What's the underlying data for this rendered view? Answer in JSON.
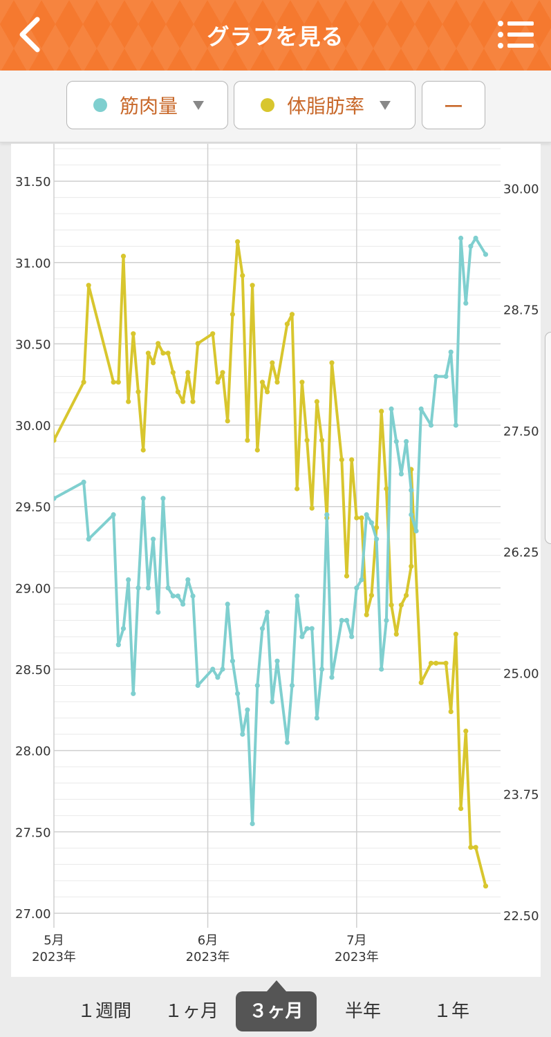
{
  "header": {
    "title": "グラフを見る"
  },
  "selectors": [
    {
      "label": "筋肉量",
      "color": "#7fcfcf"
    },
    {
      "label": "体脂肪率",
      "color": "#d8c62e"
    },
    {
      "label": "ー"
    }
  ],
  "tabs": [
    {
      "label": "１週間",
      "active": false
    },
    {
      "label": "１ヶ月",
      "active": false
    },
    {
      "label": "３ヶ月",
      "active": true
    },
    {
      "label": "半年",
      "active": false
    },
    {
      "label": "１年",
      "active": false
    }
  ],
  "chart_data": {
    "type": "line",
    "left_axis": {
      "ticks": [
        "27.00",
        "27.50",
        "28.00",
        "28.50",
        "29.00",
        "29.50",
        "30.00",
        "30.50",
        "31.00",
        "31.50"
      ],
      "ylim": [
        26.97,
        31.73
      ]
    },
    "right_axis": {
      "ticks": [
        "22.50",
        "23.75",
        "25.00",
        "26.25",
        "27.50",
        "28.75",
        "30.00"
      ],
      "ylim": [
        22.47,
        30.46
      ]
    },
    "x_axis": {
      "xlim": [
        "2023-05-01",
        "2023-07-30"
      ],
      "ticks": [
        {
          "date": "2023-05-01",
          "month": "5月",
          "year": "2023年"
        },
        {
          "date": "2023-06-01",
          "month": "6月",
          "year": "2023年"
        },
        {
          "date": "2023-07-01",
          "month": "7月",
          "year": "2023年"
        }
      ]
    },
    "series": [
      {
        "name": "筋肉量",
        "axis": "left",
        "color": "#7fcfcf",
        "points": [
          [
            "2023-04-30",
            29.5
          ],
          [
            "2023-05-01",
            29.55
          ],
          [
            "2023-05-07",
            29.65
          ],
          [
            "2023-05-08",
            29.3
          ],
          [
            "2023-05-13",
            29.45
          ],
          [
            "2023-05-14",
            28.65
          ],
          [
            "2023-05-15",
            28.75
          ],
          [
            "2023-05-16",
            29.05
          ],
          [
            "2023-05-17",
            28.35
          ],
          [
            "2023-05-18",
            29.0
          ],
          [
            "2023-05-19",
            29.55
          ],
          [
            "2023-05-20",
            29.0
          ],
          [
            "2023-05-21",
            29.3
          ],
          [
            "2023-05-22",
            28.85
          ],
          [
            "2023-05-23",
            29.55
          ],
          [
            "2023-05-24",
            29.0
          ],
          [
            "2023-05-25",
            28.95
          ],
          [
            "2023-05-26",
            28.95
          ],
          [
            "2023-05-27",
            28.9
          ],
          [
            "2023-05-28",
            29.05
          ],
          [
            "2023-05-29",
            28.95
          ],
          [
            "2023-05-30",
            28.4
          ],
          [
            "2023-06-02",
            28.5
          ],
          [
            "2023-06-03",
            28.45
          ],
          [
            "2023-06-04",
            28.5
          ],
          [
            "2023-06-05",
            28.9
          ],
          [
            "2023-06-06",
            28.55
          ],
          [
            "2023-06-07",
            28.35
          ],
          [
            "2023-06-08",
            28.1
          ],
          [
            "2023-06-09",
            28.25
          ],
          [
            "2023-06-10",
            27.55
          ],
          [
            "2023-06-11",
            28.4
          ],
          [
            "2023-06-12",
            28.75
          ],
          [
            "2023-06-13",
            28.85
          ],
          [
            "2023-06-14",
            28.3
          ],
          [
            "2023-06-15",
            28.55
          ],
          [
            "2023-06-17",
            28.05
          ],
          [
            "2023-06-18",
            28.4
          ],
          [
            "2023-06-19",
            28.95
          ],
          [
            "2023-06-20",
            28.7
          ],
          [
            "2023-06-21",
            28.75
          ],
          [
            "2023-06-22",
            28.75
          ],
          [
            "2023-06-23",
            28.2
          ],
          [
            "2023-06-24",
            28.5
          ],
          [
            "2023-06-25",
            29.45
          ],
          [
            "2023-06-26",
            28.45
          ],
          [
            "2023-06-28",
            28.8
          ],
          [
            "2023-06-29",
            28.8
          ],
          [
            "2023-06-30",
            28.7
          ],
          [
            "2023-07-01",
            29.0
          ],
          [
            "2023-07-02",
            29.05
          ],
          [
            "2023-07-03",
            29.45
          ],
          [
            "2023-07-04",
            29.4
          ],
          [
            "2023-07-05",
            29.3
          ],
          [
            "2023-07-06",
            28.5
          ],
          [
            "2023-07-07",
            28.8
          ],
          [
            "2023-07-08",
            30.1
          ],
          [
            "2023-07-09",
            29.9
          ],
          [
            "2023-07-10",
            29.7
          ],
          [
            "2023-07-11",
            29.9
          ],
          [
            "2023-07-12",
            29.6
          ],
          [
            "2023-07-12",
            29.45
          ],
          [
            "2023-07-13",
            29.35
          ],
          [
            "2023-07-14",
            30.1
          ],
          [
            "2023-07-16",
            30.0
          ],
          [
            "2023-07-17",
            30.3
          ],
          [
            "2023-07-19",
            30.3
          ],
          [
            "2023-07-20",
            30.45
          ],
          [
            "2023-07-21",
            30.0
          ],
          [
            "2023-07-22",
            31.15
          ],
          [
            "2023-07-23",
            30.75
          ],
          [
            "2023-07-24",
            31.1
          ],
          [
            "2023-07-25",
            31.15
          ],
          [
            "2023-07-27",
            31.05
          ]
        ]
      },
      {
        "name": "体脂肪率",
        "axis": "right",
        "color": "#d8c62e",
        "points": [
          [
            "2023-04-30",
            27.9
          ],
          [
            "2023-05-01",
            27.4
          ],
          [
            "2023-05-07",
            28.0
          ],
          [
            "2023-05-08",
            29.0
          ],
          [
            "2023-05-13",
            28.0
          ],
          [
            "2023-05-14",
            28.0
          ],
          [
            "2023-05-15",
            29.3
          ],
          [
            "2023-05-16",
            27.8
          ],
          [
            "2023-05-17",
            28.5
          ],
          [
            "2023-05-18",
            27.9
          ],
          [
            "2023-05-19",
            27.3
          ],
          [
            "2023-05-20",
            28.3
          ],
          [
            "2023-05-21",
            28.2
          ],
          [
            "2023-05-22",
            28.4
          ],
          [
            "2023-05-23",
            28.3
          ],
          [
            "2023-05-24",
            28.3
          ],
          [
            "2023-05-25",
            28.1
          ],
          [
            "2023-05-26",
            27.9
          ],
          [
            "2023-05-27",
            27.8
          ],
          [
            "2023-05-28",
            28.1
          ],
          [
            "2023-05-29",
            27.8
          ],
          [
            "2023-05-30",
            28.4
          ],
          [
            "2023-06-02",
            28.5
          ],
          [
            "2023-06-03",
            28.0
          ],
          [
            "2023-06-04",
            28.1
          ],
          [
            "2023-06-05",
            27.6
          ],
          [
            "2023-06-06",
            28.7
          ],
          [
            "2023-06-07",
            29.45
          ],
          [
            "2023-06-08",
            29.1
          ],
          [
            "2023-06-09",
            27.4
          ],
          [
            "2023-06-10",
            29.0
          ],
          [
            "2023-06-11",
            27.3
          ],
          [
            "2023-06-12",
            28.0
          ],
          [
            "2023-06-13",
            27.9
          ],
          [
            "2023-06-14",
            28.2
          ],
          [
            "2023-06-15",
            28.0
          ],
          [
            "2023-06-17",
            28.6
          ],
          [
            "2023-06-18",
            28.7
          ],
          [
            "2023-06-19",
            26.9
          ],
          [
            "2023-06-20",
            28.0
          ],
          [
            "2023-06-21",
            27.4
          ],
          [
            "2023-06-22",
            26.7
          ],
          [
            "2023-06-23",
            27.8
          ],
          [
            "2023-06-24",
            27.4
          ],
          [
            "2023-06-25",
            26.6
          ],
          [
            "2023-06-26",
            28.2
          ],
          [
            "2023-06-28",
            27.2
          ],
          [
            "2023-06-29",
            26.0
          ],
          [
            "2023-06-30",
            27.2
          ],
          [
            "2023-07-01",
            26.6
          ],
          [
            "2023-07-02",
            26.6
          ],
          [
            "2023-07-03",
            25.6
          ],
          [
            "2023-07-04",
            25.8
          ],
          [
            "2023-07-05",
            26.5
          ],
          [
            "2023-07-06",
            27.7
          ],
          [
            "2023-07-07",
            26.9
          ],
          [
            "2023-07-08",
            25.7
          ],
          [
            "2023-07-09",
            25.4
          ],
          [
            "2023-07-10",
            25.7
          ],
          [
            "2023-07-11",
            25.8
          ],
          [
            "2023-07-12",
            26.1
          ],
          [
            "2023-07-12",
            27.1
          ],
          [
            "2023-07-14",
            24.9
          ],
          [
            "2023-07-16",
            25.1
          ],
          [
            "2023-07-17",
            25.1
          ],
          [
            "2023-07-19",
            25.1
          ],
          [
            "2023-07-20",
            24.6
          ],
          [
            "2023-07-21",
            25.4
          ],
          [
            "2023-07-22",
            23.6
          ],
          [
            "2023-07-23",
            24.4
          ],
          [
            "2023-07-24",
            23.2
          ],
          [
            "2023-07-25",
            23.2
          ],
          [
            "2023-07-27",
            22.8
          ]
        ]
      }
    ]
  }
}
